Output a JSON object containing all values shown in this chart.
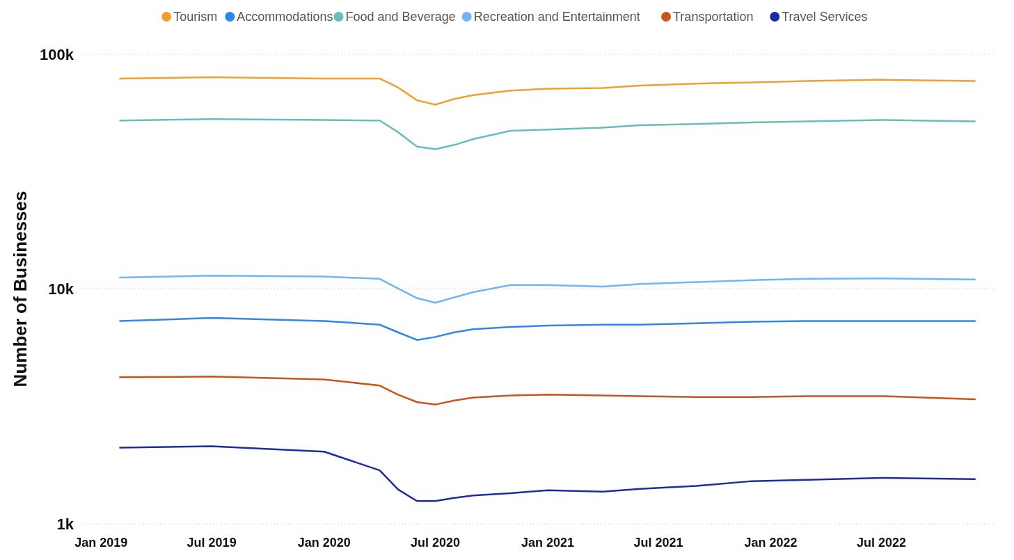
{
  "chart_data": {
    "type": "line",
    "ylabel": "Number of Businesses",
    "log": "y",
    "grid": "y",
    "legend": "top",
    "marker": "none",
    "line_style": "solid",
    "x": [
      "2019-02",
      "2019-07",
      "2020-01",
      "2020-04",
      "2020-05",
      "2020-06",
      "2020-07",
      "2020-08",
      "2020-09",
      "2020-11",
      "2021-01",
      "2021-04",
      "2021-06",
      "2021-09",
      "2021-12",
      "2022-03",
      "2022-07",
      "2022-12"
    ],
    "xlim": [
      "2018-12",
      "2023-01"
    ],
    "xticks": [
      {
        "value": "2019-01",
        "label": "Jan 2019"
      },
      {
        "value": "2019-07",
        "label": "Jul 2019"
      },
      {
        "value": "2020-01",
        "label": "Jan 2020"
      },
      {
        "value": "2020-07",
        "label": "Jul 2020"
      },
      {
        "value": "2021-01",
        "label": "Jan 2021"
      },
      {
        "value": "2021-07",
        "label": "Jul 2021"
      },
      {
        "value": "2022-01",
        "label": "Jan 2022"
      },
      {
        "value": "2022-07",
        "label": "Jul 2022"
      }
    ],
    "ylim": [
      1000,
      100000
    ],
    "yticks": [
      {
        "value": 1000,
        "label": "1k"
      },
      {
        "value": 10000,
        "label": "10k"
      },
      {
        "value": 100000,
        "label": "100k"
      }
    ],
    "series": [
      {
        "name": "Tourism",
        "color": "#f0a030",
        "values": [
          78800,
          79800,
          78800,
          78800,
          72200,
          63700,
          61000,
          64500,
          67000,
          70000,
          71300,
          71800,
          73600,
          75000,
          75900,
          76900,
          77900,
          76900
        ]
      },
      {
        "name": "Accommodations",
        "color": "#2f86eb",
        "values": [
          7310,
          7530,
          7310,
          7050,
          6540,
          6070,
          6250,
          6540,
          6740,
          6890,
          6990,
          7050,
          7050,
          7150,
          7260,
          7310,
          7310,
          7310
        ]
      },
      {
        "name": "Food and Beverage",
        "color": "#68bcbc",
        "values": [
          52200,
          52900,
          52500,
          52200,
          46600,
          40400,
          39400,
          41100,
          43500,
          47200,
          47800,
          48700,
          49900,
          50500,
          51200,
          51800,
          52500,
          51800
        ]
      },
      {
        "name": "Recreation and Entertainment",
        "color": "#72b5f5",
        "values": [
          11200,
          11400,
          11300,
          11050,
          10060,
          9150,
          8740,
          9210,
          9700,
          10400,
          10400,
          10250,
          10500,
          10700,
          10900,
          11050,
          11100,
          10980
        ]
      },
      {
        "name": "Transportation",
        "color": "#c8561a",
        "values": [
          4210,
          4240,
          4120,
          3880,
          3550,
          3300,
          3220,
          3350,
          3450,
          3520,
          3550,
          3520,
          3500,
          3470,
          3470,
          3500,
          3500,
          3390
        ]
      },
      {
        "name": "Travel Services",
        "color": "#1c2da0",
        "values": [
          2110,
          2140,
          2030,
          1690,
          1400,
          1250,
          1250,
          1290,
          1320,
          1350,
          1390,
          1370,
          1410,
          1450,
          1520,
          1540,
          1570,
          1550
        ]
      }
    ]
  }
}
